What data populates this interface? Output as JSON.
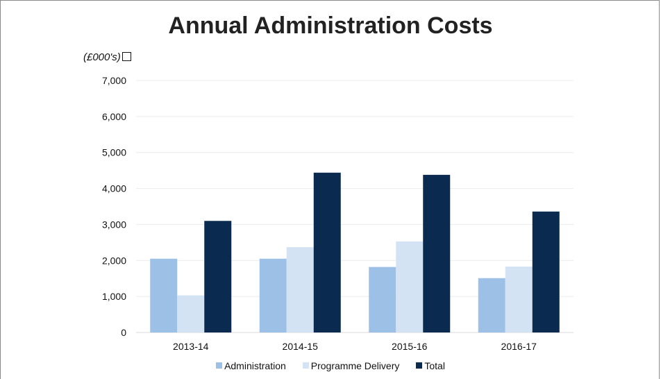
{
  "chart_data": {
    "type": "bar",
    "title": "Annual Administration Costs",
    "ylabel": "(£000's)",
    "xlabel": "",
    "categories": [
      "2013-14",
      "2014-15",
      "2015-16",
      "2016-17"
    ],
    "series": [
      {
        "name": "Administration",
        "color": "#9dc0e6",
        "values": [
          2050,
          2050,
          1820,
          1510
        ]
      },
      {
        "name": "Programme Delivery",
        "color": "#d4e3f4",
        "values": [
          1030,
          2370,
          2530,
          1830
        ]
      },
      {
        "name": "Total",
        "color": "#0b2a4f",
        "values": [
          3100,
          4440,
          4380,
          3360
        ]
      }
    ],
    "ylim": [
      0,
      7000
    ],
    "yticks": [
      "0",
      "1,000",
      "2,000",
      "3,000",
      "4,000",
      "5,000",
      "6,000",
      "7,000"
    ],
    "grid": true,
    "legend_position": "bottom"
  }
}
